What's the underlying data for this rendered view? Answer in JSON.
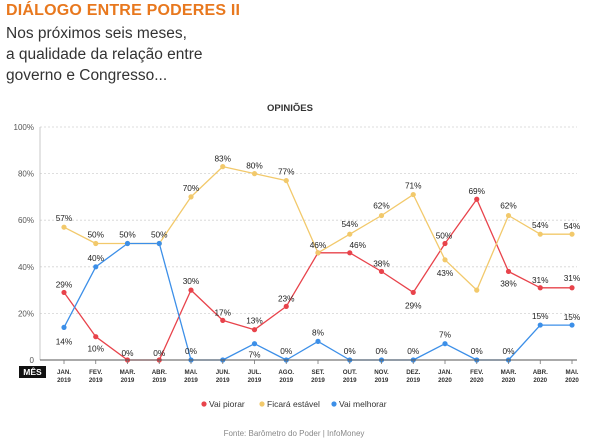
{
  "header": {
    "kicker": "DIÁLOGO ENTRE PODERES II",
    "subtitle_lines": [
      "Nos próximos seis meses,",
      "a qualidade da relação entre",
      "governo e Congresso..."
    ]
  },
  "chart_data": {
    "type": "line",
    "title": "OPINIÕES",
    "x_axis_title": "MÊS",
    "categories": [
      [
        "JAN.",
        "2019"
      ],
      [
        "FEV.",
        "2019"
      ],
      [
        "MAR.",
        "2019"
      ],
      [
        "ABR.",
        "2019"
      ],
      [
        "MAI.",
        "2019"
      ],
      [
        "JUN.",
        "2019"
      ],
      [
        "JUL.",
        "2019"
      ],
      [
        "AGO.",
        "2019"
      ],
      [
        "SET.",
        "2019"
      ],
      [
        "OUT.",
        "2019"
      ],
      [
        "NOV.",
        "2019"
      ],
      [
        "DEZ.",
        "2019"
      ],
      [
        "JAN.",
        "2020"
      ],
      [
        "FEV.",
        "2020"
      ],
      [
        "MAR.",
        "2020"
      ],
      [
        "ABR.",
        "2020"
      ],
      [
        "MAI.",
        "2020"
      ]
    ],
    "y_ticks": [
      "0",
      "20%",
      "40%",
      "60%",
      "80%",
      "100%"
    ],
    "ylim": [
      0,
      100
    ],
    "grid": true,
    "legend_position": "bottom",
    "series": [
      {
        "name": "Vai piorar",
        "color": "#e8434b",
        "values": [
          29,
          10,
          0,
          0,
          30,
          17,
          13,
          23,
          46,
          46,
          38,
          29,
          50,
          69,
          38,
          31,
          31
        ],
        "labels": [
          "29%",
          "10%",
          "0%",
          "0%",
          "30%",
          "17%",
          "13%",
          "23%",
          "46%",
          "46%",
          "38%",
          "29%",
          "50%",
          "69%",
          "38%",
          "31%",
          ""
        ]
      },
      {
        "name": "Ficará estável",
        "color": "#f2c96b",
        "values": [
          57,
          50,
          50,
          50,
          70,
          83,
          80,
          77,
          46,
          54,
          62,
          71,
          43,
          30,
          62,
          54,
          54
        ],
        "labels": [
          "57%",
          "50%",
          "50%",
          "50%",
          "70%",
          "83%",
          "80%",
          "77%",
          "",
          "54%",
          "62%",
          "71%",
          "43%",
          "",
          "62%",
          "54%",
          ""
        ]
      },
      {
        "name": "Vai melhorar",
        "color": "#3c8fe8",
        "values": [
          14,
          40,
          50,
          50,
          0,
          0,
          7,
          0,
          8,
          0,
          0,
          0,
          7,
          0,
          0,
          15,
          15
        ],
        "labels": [
          "14%",
          "40%",
          "",
          "",
          "0%",
          "",
          "7%",
          "0%",
          "8%",
          "0%",
          "0%",
          "0%",
          "7%",
          "0%",
          "0%",
          "15%",
          ""
        ]
      }
    ],
    "source": "Fonte: Barômetro do Poder | InfoMoney"
  }
}
